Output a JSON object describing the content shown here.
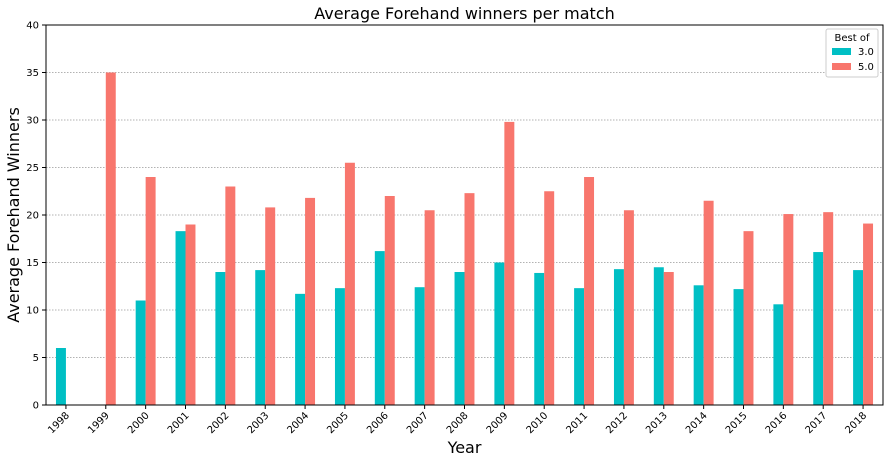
{
  "chart_data": {
    "type": "bar",
    "title": "Average Forehand winners per match",
    "xlabel": "Year",
    "ylabel": "Average Forehand Winners",
    "ylim": [
      0,
      40
    ],
    "yticks": [
      "0",
      "5",
      "10",
      "15",
      "20",
      "25",
      "30",
      "35",
      "40"
    ],
    "grid": "horizontal dotted",
    "legend": {
      "title": "Best of",
      "placement": "top-right"
    },
    "categories": [
      "1998",
      "1999",
      "2000",
      "2001",
      "2002",
      "2003",
      "2004",
      "2005",
      "2006",
      "2007",
      "2008",
      "2009",
      "2010",
      "2011",
      "2012",
      "2013",
      "2014",
      "2015",
      "2016",
      "2017",
      "2018"
    ],
    "series": [
      {
        "name": "3.0",
        "color": "#00bfc4",
        "values": [
          6.0,
          null,
          11.0,
          18.3,
          14.0,
          14.2,
          11.7,
          12.3,
          16.2,
          12.4,
          14.0,
          15.0,
          13.9,
          12.3,
          14.3,
          14.5,
          12.6,
          12.2,
          10.6,
          16.1,
          14.2
        ]
      },
      {
        "name": "5.0",
        "color": "#f8766d",
        "values": [
          null,
          35.0,
          24.0,
          19.0,
          23.0,
          20.8,
          21.8,
          25.5,
          22.0,
          20.5,
          22.3,
          29.8,
          22.5,
          24.0,
          20.5,
          14.0,
          21.5,
          18.3,
          20.1,
          20.3,
          19.1
        ]
      }
    ]
  }
}
